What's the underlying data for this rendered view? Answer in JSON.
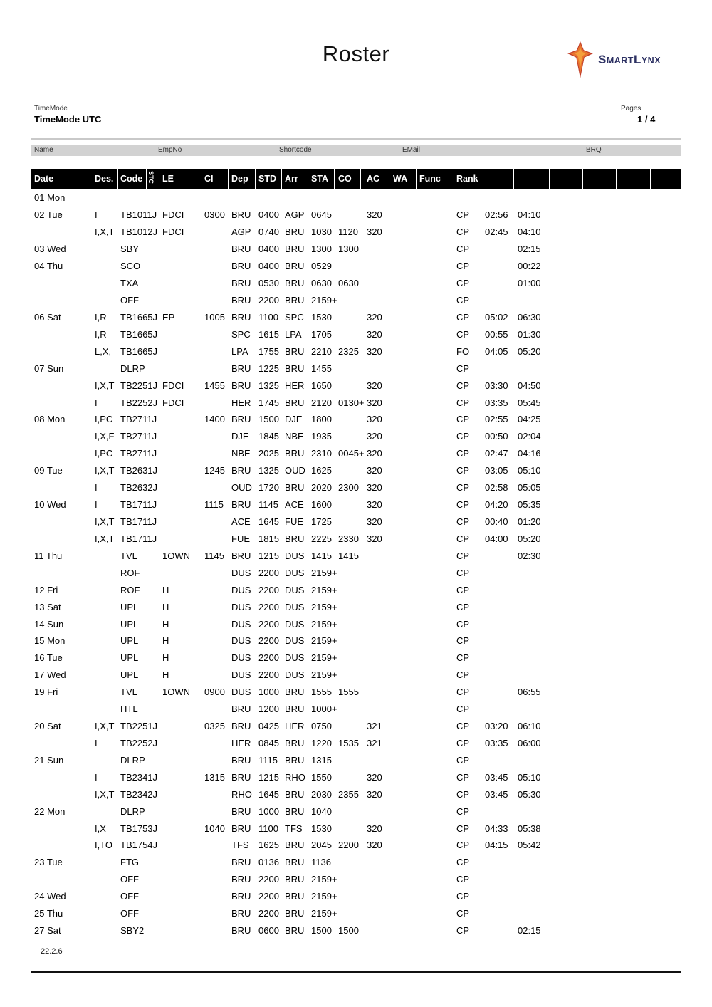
{
  "page": {
    "title": "Roster",
    "version": "22.2.6"
  },
  "logo": {
    "brand": "SmartLynx",
    "text_parts": {
      "s1": "S",
      "p1": "MART",
      "s2": "L",
      "p2": "YNX"
    },
    "colors": {
      "star_main": "#d8542c",
      "star_inner": "#f0883c",
      "text_navy": "#2d3163"
    }
  },
  "meta": {
    "timemode_label": "TimeMode",
    "timemode_value": "TimeMode UTC",
    "pages_label": "Pages",
    "pages_value": "1 / 4"
  },
  "info_bar": {
    "labels": [
      "Name",
      "EmpNo",
      "Shortcode",
      "EMail",
      "BRQ"
    ]
  },
  "table": {
    "headers": [
      "Date",
      "Des.",
      "Code",
      "STC",
      "LE",
      "CI",
      "Dep",
      "STD",
      "Arr",
      "STA",
      "CO",
      "AC",
      "WA",
      "Func",
      "Rank",
      "",
      "",
      "",
      "",
      "",
      ""
    ],
    "rows": [
      {
        "date": "01 Mon"
      },
      {
        "date": "02 Tue",
        "des": "I",
        "code": "TB1011J",
        "le": "FDCI",
        "ci": "0300",
        "dep": "BRU",
        "std": "0400",
        "arr": "AGP",
        "sta": "0645",
        "ac": "320",
        "rank": "CP",
        "t1": "02:56",
        "t2": "04:10"
      },
      {
        "des": "I,X,T",
        "code": "TB1012J",
        "le": "FDCI",
        "dep": "AGP",
        "std": "0740",
        "arr": "BRU",
        "sta": "1030",
        "co": "1120",
        "ac": "320",
        "rank": "CP",
        "t1": "02:45",
        "t2": "04:10"
      },
      {
        "date": "03 Wed",
        "code": "SBY",
        "dep": "BRU",
        "std": "0400",
        "arr": "BRU",
        "sta": "1300",
        "co": "1300",
        "rank": "CP",
        "t2": "02:15"
      },
      {
        "date": "04 Thu",
        "code": "SCO",
        "dep": "BRU",
        "std": "0400",
        "arr": "BRU",
        "sta": "0529",
        "rank": "CP",
        "t2": "00:22"
      },
      {
        "code": "TXA",
        "dep": "BRU",
        "std": "0530",
        "arr": "BRU",
        "sta": "0630",
        "co": "0630",
        "rank": "CP",
        "t2": "01:00"
      },
      {
        "code": "OFF",
        "dep": "BRU",
        "std": "2200",
        "arr": "BRU",
        "sta": "2159+",
        "rank": "CP"
      },
      {
        "date": "06 Sat",
        "des": "I,R",
        "code": "TB1665J",
        "le": "EP",
        "ci": "1005",
        "dep": "BRU",
        "std": "1100",
        "arr": "SPC",
        "sta": "1530",
        "ac": "320",
        "rank": "CP",
        "t1": "05:02",
        "t2": "06:30"
      },
      {
        "des": "I,R",
        "code": "TB1665J",
        "dep": "SPC",
        "std": "1615",
        "arr": "LPA",
        "sta": "1705",
        "ac": "320",
        "rank": "CP",
        "t1": "00:55",
        "t2": "01:30"
      },
      {
        "des": "L,X,¯",
        "code": "TB1665J",
        "dep": "LPA",
        "std": "1755",
        "arr": "BRU",
        "sta": "2210",
        "co": "2325",
        "ac": "320",
        "rank": "FO",
        "t1": "04:05",
        "t2": "05:20"
      },
      {
        "date": "07 Sun",
        "code": "DLRP",
        "dep": "BRU",
        "std": "1225",
        "arr": "BRU",
        "sta": "1455",
        "rank": "CP"
      },
      {
        "des": "I,X,T",
        "code": "TB2251J",
        "le": "FDCI",
        "ci": "1455",
        "dep": "BRU",
        "std": "1325",
        "arr": "HER",
        "sta": "1650",
        "ac": "320",
        "rank": "CP",
        "t1": "03:30",
        "t2": "04:50"
      },
      {
        "des": "I",
        "code": "TB2252J",
        "le": "FDCI",
        "dep": "HER",
        "std": "1745",
        "arr": "BRU",
        "sta": "2120",
        "co": "0130+",
        "ac": "320",
        "rank": "CP",
        "t1": "03:35",
        "t2": "05:45"
      },
      {
        "date": "08 Mon",
        "des": "I,PC",
        "code": "TB2711J",
        "ci": "1400",
        "dep": "BRU",
        "std": "1500",
        "arr": "DJE",
        "sta": "1800",
        "ac": "320",
        "rank": "CP",
        "t1": "02:55",
        "t2": "04:25"
      },
      {
        "des": "I,X,F",
        "code": "TB2711J",
        "dep": "DJE",
        "std": "1845",
        "arr": "NBE",
        "sta": "1935",
        "ac": "320",
        "rank": "CP",
        "t1": "00:50",
        "t2": "02:04"
      },
      {
        "des": "I,PC",
        "code": "TB2711J",
        "dep": "NBE",
        "std": "2025",
        "arr": "BRU",
        "sta": "2310",
        "co": "0045+",
        "ac": "320",
        "rank": "CP",
        "t1": "02:47",
        "t2": "04:16"
      },
      {
        "date": "09 Tue",
        "des": "I,X,T",
        "code": "TB2631J",
        "ci": "1245",
        "dep": "BRU",
        "std": "1325",
        "arr": "OUD",
        "sta": "1625",
        "ac": "320",
        "rank": "CP",
        "t1": "03:05",
        "t2": "05:10"
      },
      {
        "des": "I",
        "code": "TB2632J",
        "dep": "OUD",
        "std": "1720",
        "arr": "BRU",
        "sta": "2020",
        "co": "2300",
        "ac": "320",
        "rank": "CP",
        "t1": "02:58",
        "t2": "05:05"
      },
      {
        "date": "10 Wed",
        "des": "I",
        "code": "TB1711J",
        "ci": "1115",
        "dep": "BRU",
        "std": "1145",
        "arr": "ACE",
        "sta": "1600",
        "ac": "320",
        "rank": "CP",
        "t1": "04:20",
        "t2": "05:35"
      },
      {
        "des": "I,X,T",
        "code": "TB1711J",
        "dep": "ACE",
        "std": "1645",
        "arr": "FUE",
        "sta": "1725",
        "ac": "320",
        "rank": "CP",
        "t1": "00:40",
        "t2": "01:20"
      },
      {
        "des": "I,X,T",
        "code": "TB1711J",
        "dep": "FUE",
        "std": "1815",
        "arr": "BRU",
        "sta": "2225",
        "co": "2330",
        "ac": "320",
        "rank": "CP",
        "t1": "04:00",
        "t2": "05:20"
      },
      {
        "date": "11 Thu",
        "code": "TVL",
        "le": "1OWN",
        "ci": "1145",
        "dep": "BRU",
        "std": "1215",
        "arr": "DUS",
        "sta": "1415",
        "co": "1415",
        "rank": "CP",
        "t2": "02:30"
      },
      {
        "code": "ROF",
        "dep": "DUS",
        "std": "2200",
        "arr": "DUS",
        "sta": "2159+",
        "rank": "CP"
      },
      {
        "date": "12 Fri",
        "code": "ROF",
        "le": "H",
        "dep": "DUS",
        "std": "2200",
        "arr": "DUS",
        "sta": "2159+",
        "rank": "CP"
      },
      {
        "date": "13 Sat",
        "code": "UPL",
        "le": "H",
        "dep": "DUS",
        "std": "2200",
        "arr": "DUS",
        "sta": "2159+",
        "rank": "CP"
      },
      {
        "date": "14 Sun",
        "code": "UPL",
        "le": "H",
        "dep": "DUS",
        "std": "2200",
        "arr": "DUS",
        "sta": "2159+",
        "rank": "CP"
      },
      {
        "date": "15 Mon",
        "code": "UPL",
        "le": "H",
        "dep": "DUS",
        "std": "2200",
        "arr": "DUS",
        "sta": "2159+",
        "rank": "CP"
      },
      {
        "date": "16 Tue",
        "code": "UPL",
        "le": "H",
        "dep": "DUS",
        "std": "2200",
        "arr": "DUS",
        "sta": "2159+",
        "rank": "CP"
      },
      {
        "date": "17 Wed",
        "code": "UPL",
        "le": "H",
        "dep": "DUS",
        "std": "2200",
        "arr": "DUS",
        "sta": "2159+",
        "rank": "CP"
      },
      {
        "date": "19 Fri",
        "code": "TVL",
        "le": "1OWN",
        "ci": "0900",
        "dep": "DUS",
        "std": "1000",
        "arr": "BRU",
        "sta": "1555",
        "co": "1555",
        "rank": "CP",
        "t2": "06:55"
      },
      {
        "code": "HTL",
        "dep": "BRU",
        "std": "1200",
        "arr": "BRU",
        "sta": "1000+",
        "rank": "CP"
      },
      {
        "date": "20 Sat",
        "des": "I,X,T",
        "code": "TB2251J",
        "ci": "0325",
        "dep": "BRU",
        "std": "0425",
        "arr": "HER",
        "sta": "0750",
        "ac": "321",
        "rank": "CP",
        "t1": "03:20",
        "t2": "06:10"
      },
      {
        "des": "I",
        "code": "TB2252J",
        "dep": "HER",
        "std": "0845",
        "arr": "BRU",
        "sta": "1220",
        "co": "1535",
        "ac": "321",
        "rank": "CP",
        "t1": "03:35",
        "t2": "06:00"
      },
      {
        "date": "21 Sun",
        "code": "DLRP",
        "dep": "BRU",
        "std": "1115",
        "arr": "BRU",
        "sta": "1315",
        "rank": "CP"
      },
      {
        "des": "I",
        "code": "TB2341J",
        "ci": "1315",
        "dep": "BRU",
        "std": "1215",
        "arr": "RHO",
        "sta": "1550",
        "ac": "320",
        "rank": "CP",
        "t1": "03:45",
        "t2": "05:10"
      },
      {
        "des": "I,X,T",
        "code": "TB2342J",
        "dep": "RHO",
        "std": "1645",
        "arr": "BRU",
        "sta": "2030",
        "co": "2355",
        "ac": "320",
        "rank": "CP",
        "t1": "03:45",
        "t2": "05:30"
      },
      {
        "date": "22 Mon",
        "code": "DLRP",
        "dep": "BRU",
        "std": "1000",
        "arr": "BRU",
        "sta": "1040",
        "rank": "CP"
      },
      {
        "des": "I,X",
        "code": "TB1753J",
        "ci": "1040",
        "dep": "BRU",
        "std": "1100",
        "arr": "TFS",
        "sta": "1530",
        "ac": "320",
        "rank": "CP",
        "t1": "04:33",
        "t2": "05:38"
      },
      {
        "des": "I,TO",
        "code": "TB1754J",
        "dep": "TFS",
        "std": "1625",
        "arr": "BRU",
        "sta": "2045",
        "co": "2200",
        "ac": "320",
        "rank": "CP",
        "t1": "04:15",
        "t2": "05:42"
      },
      {
        "date": "23 Tue",
        "code": "FTG",
        "dep": "BRU",
        "std": "0136",
        "arr": "BRU",
        "sta": "1136",
        "rank": "CP"
      },
      {
        "code": "OFF",
        "dep": "BRU",
        "std": "2200",
        "arr": "BRU",
        "sta": "2159+",
        "rank": "CP"
      },
      {
        "date": "24 Wed",
        "code": "OFF",
        "dep": "BRU",
        "std": "2200",
        "arr": "BRU",
        "sta": "2159+",
        "rank": "CP"
      },
      {
        "date": "25 Thu",
        "code": "OFF",
        "dep": "BRU",
        "std": "2200",
        "arr": "BRU",
        "sta": "2159+",
        "rank": "CP"
      },
      {
        "date": "27 Sat",
        "code": "SBY2",
        "dep": "BRU",
        "std": "0600",
        "arr": "BRU",
        "sta": "1500",
        "co": "1500",
        "rank": "CP",
        "t2": "02:15"
      }
    ]
  }
}
